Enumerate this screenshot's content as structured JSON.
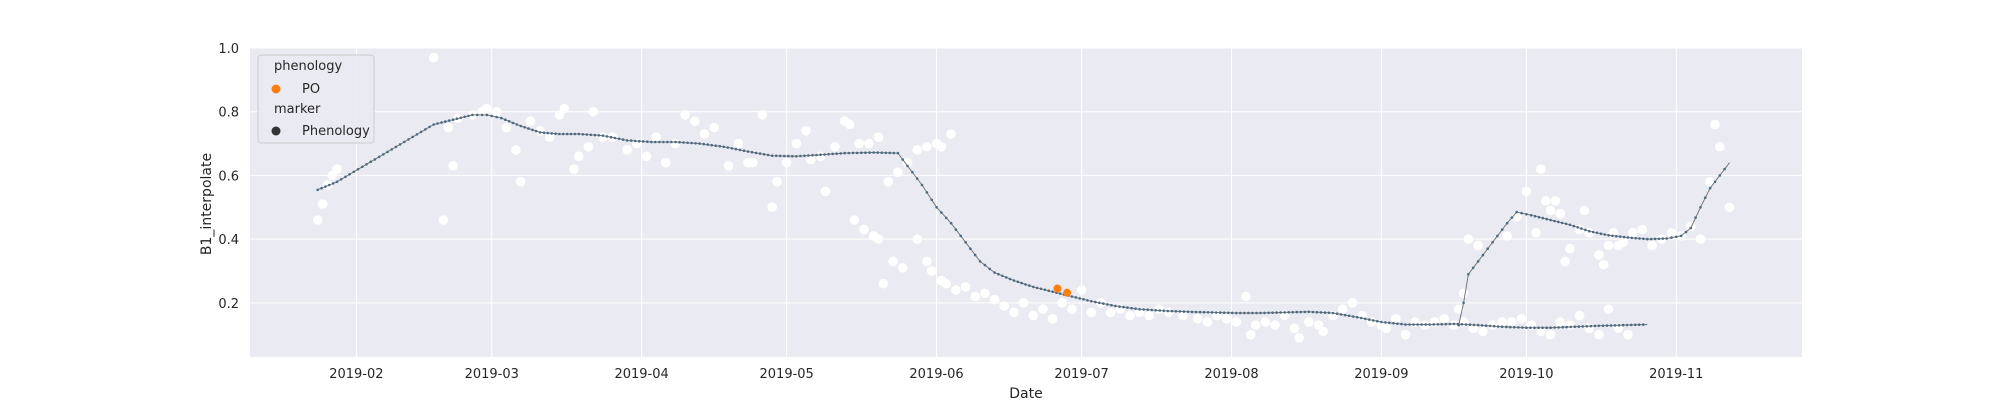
{
  "chart_data": {
    "type": "scatter",
    "title": "",
    "xlabel": "Date",
    "ylabel": "B1_interpolate",
    "x_range": [
      "2019-01-10",
      "2019-11-27"
    ],
    "ylim": [
      0.03,
      1.0
    ],
    "grid": true,
    "style": "seaborn-darkgrid",
    "x_ticks": [
      "2019-02",
      "2019-03",
      "2019-04",
      "2019-05",
      "2019-06",
      "2019-07",
      "2019-08",
      "2019-09",
      "2019-10",
      "2019-11"
    ],
    "y_ticks": [
      "1.0",
      "0.8",
      "0.6",
      "0.4",
      "0.2"
    ],
    "legend": {
      "placement": "upper-left",
      "sections": [
        {
          "title": "phenology",
          "entries": [
            {
              "label": "PO",
              "color": "#ff7f0e"
            }
          ]
        },
        {
          "title": "marker",
          "entries": [
            {
              "label": "Phenology",
              "color": "#333333"
            }
          ]
        }
      ]
    },
    "colors": {
      "observed": "#ffffff",
      "interpolated_line": "#777777",
      "interpolated_points": "#4c6a80",
      "phenology": "#ff7f0e",
      "background": "#eaeaf2"
    },
    "series": [
      {
        "role": "observed",
        "kind": "scatter",
        "color": "#ffffff",
        "points": [
          [
            "2019-01-24",
            0.46
          ],
          [
            "2019-01-25",
            0.51
          ],
          [
            "2019-01-26",
            0.57
          ],
          [
            "2019-01-27",
            0.6
          ],
          [
            "2019-01-28",
            0.62
          ],
          [
            "2019-02-17",
            0.97
          ],
          [
            "2019-02-19",
            0.46
          ],
          [
            "2019-02-20",
            0.75
          ],
          [
            "2019-02-21",
            0.63
          ],
          [
            "2019-02-22",
            0.78
          ],
          [
            "2019-02-25",
            0.79
          ],
          [
            "2019-02-27",
            0.8
          ],
          [
            "2019-02-28",
            0.81
          ],
          [
            "2019-03-02",
            0.8
          ],
          [
            "2019-03-04",
            0.75
          ],
          [
            "2019-03-06",
            0.68
          ],
          [
            "2019-03-07",
            0.58
          ],
          [
            "2019-03-09",
            0.77
          ],
          [
            "2019-03-11",
            0.74
          ],
          [
            "2019-03-13",
            0.72
          ],
          [
            "2019-03-15",
            0.79
          ],
          [
            "2019-03-16",
            0.81
          ],
          [
            "2019-03-18",
            0.62
          ],
          [
            "2019-03-19",
            0.66
          ],
          [
            "2019-03-21",
            0.69
          ],
          [
            "2019-03-22",
            0.8
          ],
          [
            "2019-03-24",
            0.72
          ],
          [
            "2019-03-26",
            0.72
          ],
          [
            "2019-03-29",
            0.68
          ],
          [
            "2019-03-31",
            0.7
          ],
          [
            "2019-04-02",
            0.66
          ],
          [
            "2019-04-04",
            0.72
          ],
          [
            "2019-04-06",
            0.64
          ],
          [
            "2019-04-08",
            0.7
          ],
          [
            "2019-04-10",
            0.79
          ],
          [
            "2019-04-12",
            0.77
          ],
          [
            "2019-04-14",
            0.73
          ],
          [
            "2019-04-16",
            0.75
          ],
          [
            "2019-04-19",
            0.63
          ],
          [
            "2019-04-21",
            0.7
          ],
          [
            "2019-04-23",
            0.64
          ],
          [
            "2019-04-24",
            0.64
          ],
          [
            "2019-04-26",
            0.79
          ],
          [
            "2019-04-28",
            0.5
          ],
          [
            "2019-04-29",
            0.58
          ],
          [
            "2019-05-01",
            0.64
          ],
          [
            "2019-05-03",
            0.7
          ],
          [
            "2019-05-05",
            0.74
          ],
          [
            "2019-05-06",
            0.65
          ],
          [
            "2019-05-08",
            0.66
          ],
          [
            "2019-05-09",
            0.55
          ],
          [
            "2019-05-11",
            0.69
          ],
          [
            "2019-05-13",
            0.77
          ],
          [
            "2019-05-14",
            0.76
          ],
          [
            "2019-05-16",
            0.7
          ],
          [
            "2019-05-18",
            0.7
          ],
          [
            "2019-05-20",
            0.72
          ],
          [
            "2019-05-22",
            0.58
          ],
          [
            "2019-05-24",
            0.61
          ],
          [
            "2019-05-26",
            0.64
          ],
          [
            "2019-05-28",
            0.68
          ],
          [
            "2019-05-30",
            0.69
          ],
          [
            "2019-06-01",
            0.7
          ],
          [
            "2019-06-02",
            0.69
          ],
          [
            "2019-06-04",
            0.73
          ],
          [
            "2019-05-15",
            0.46
          ],
          [
            "2019-05-17",
            0.43
          ],
          [
            "2019-05-19",
            0.41
          ],
          [
            "2019-05-20",
            0.4
          ],
          [
            "2019-05-21",
            0.26
          ],
          [
            "2019-05-23",
            0.33
          ],
          [
            "2019-05-25",
            0.31
          ],
          [
            "2019-05-28",
            0.4
          ],
          [
            "2019-05-30",
            0.33
          ],
          [
            "2019-05-31",
            0.3
          ],
          [
            "2019-06-02",
            0.27
          ],
          [
            "2019-06-03",
            0.26
          ],
          [
            "2019-06-05",
            0.24
          ],
          [
            "2019-06-07",
            0.25
          ],
          [
            "2019-06-09",
            0.22
          ],
          [
            "2019-06-11",
            0.23
          ],
          [
            "2019-06-13",
            0.21
          ],
          [
            "2019-06-15",
            0.19
          ],
          [
            "2019-06-17",
            0.17
          ],
          [
            "2019-06-19",
            0.2
          ],
          [
            "2019-06-21",
            0.16
          ],
          [
            "2019-06-23",
            0.18
          ],
          [
            "2019-06-25",
            0.15
          ],
          [
            "2019-06-27",
            0.2
          ],
          [
            "2019-06-29",
            0.18
          ],
          [
            "2019-07-01",
            0.24
          ],
          [
            "2019-07-03",
            0.17
          ],
          [
            "2019-07-05",
            0.2
          ],
          [
            "2019-07-07",
            0.17
          ],
          [
            "2019-07-09",
            0.18
          ],
          [
            "2019-07-11",
            0.16
          ],
          [
            "2019-07-13",
            0.17
          ],
          [
            "2019-07-15",
            0.16
          ],
          [
            "2019-07-17",
            0.18
          ],
          [
            "2019-07-19",
            0.17
          ],
          [
            "2019-07-22",
            0.16
          ],
          [
            "2019-07-25",
            0.15
          ],
          [
            "2019-07-27",
            0.14
          ],
          [
            "2019-07-29",
            0.16
          ],
          [
            "2019-07-31",
            0.15
          ],
          [
            "2019-08-02",
            0.14
          ],
          [
            "2019-08-04",
            0.22
          ],
          [
            "2019-08-05",
            0.1
          ],
          [
            "2019-08-06",
            0.13
          ],
          [
            "2019-08-08",
            0.14
          ],
          [
            "2019-08-10",
            0.13
          ],
          [
            "2019-08-12",
            0.16
          ],
          [
            "2019-08-14",
            0.12
          ],
          [
            "2019-08-15",
            0.09
          ],
          [
            "2019-08-17",
            0.14
          ],
          [
            "2019-08-19",
            0.13
          ],
          [
            "2019-08-20",
            0.11
          ],
          [
            "2019-08-22",
            0.16
          ],
          [
            "2019-08-24",
            0.18
          ],
          [
            "2019-08-26",
            0.2
          ],
          [
            "2019-08-28",
            0.16
          ],
          [
            "2019-08-30",
            0.14
          ],
          [
            "2019-09-01",
            0.13
          ],
          [
            "2019-09-02",
            0.12
          ],
          [
            "2019-09-04",
            0.15
          ],
          [
            "2019-09-06",
            0.1
          ],
          [
            "2019-09-08",
            0.14
          ],
          [
            "2019-09-10",
            0.13
          ],
          [
            "2019-09-12",
            0.14
          ],
          [
            "2019-09-14",
            0.15
          ],
          [
            "2019-09-16",
            0.13
          ],
          [
            "2019-09-18",
            0.14
          ],
          [
            "2019-09-20",
            0.12
          ],
          [
            "2019-09-22",
            0.11
          ],
          [
            "2019-09-24",
            0.13
          ],
          [
            "2019-09-26",
            0.14
          ],
          [
            "2019-09-28",
            0.14
          ],
          [
            "2019-09-30",
            0.15
          ],
          [
            "2019-10-02",
            0.13
          ],
          [
            "2019-10-04",
            0.11
          ],
          [
            "2019-10-06",
            0.1
          ],
          [
            "2019-10-08",
            0.14
          ],
          [
            "2019-10-10",
            0.13
          ],
          [
            "2019-10-12",
            0.16
          ],
          [
            "2019-10-14",
            0.12
          ],
          [
            "2019-10-16",
            0.1
          ],
          [
            "2019-10-18",
            0.18
          ],
          [
            "2019-10-20",
            0.12
          ],
          [
            "2019-10-22",
            0.1
          ],
          [
            "2019-09-17",
            0.18
          ],
          [
            "2019-09-18",
            0.23
          ],
          [
            "2019-09-19",
            0.4
          ],
          [
            "2019-09-21",
            0.38
          ],
          [
            "2019-09-27",
            0.41
          ],
          [
            "2019-09-29",
            0.47
          ],
          [
            "2019-10-01",
            0.55
          ],
          [
            "2019-10-03",
            0.42
          ],
          [
            "2019-10-04",
            0.62
          ],
          [
            "2019-10-05",
            0.52
          ],
          [
            "2019-10-06",
            0.49
          ],
          [
            "2019-10-07",
            0.52
          ],
          [
            "2019-10-08",
            0.48
          ],
          [
            "2019-10-09",
            0.33
          ],
          [
            "2019-10-10",
            0.37
          ],
          [
            "2019-10-12",
            0.43
          ],
          [
            "2019-10-13",
            0.49
          ],
          [
            "2019-10-14",
            0.42
          ],
          [
            "2019-10-16",
            0.35
          ],
          [
            "2019-10-17",
            0.32
          ],
          [
            "2019-10-18",
            0.38
          ],
          [
            "2019-10-19",
            0.42
          ],
          [
            "2019-10-20",
            0.38
          ],
          [
            "2019-10-21",
            0.39
          ],
          [
            "2019-10-23",
            0.42
          ],
          [
            "2019-10-25",
            0.43
          ],
          [
            "2019-10-27",
            0.38
          ],
          [
            "2019-10-29",
            0.4
          ],
          [
            "2019-10-31",
            0.42
          ],
          [
            "2019-11-02",
            0.41
          ],
          [
            "2019-11-04",
            0.44
          ],
          [
            "2019-11-06",
            0.4
          ],
          [
            "2019-11-08",
            0.58
          ],
          [
            "2019-11-09",
            0.76
          ],
          [
            "2019-11-10",
            0.69
          ],
          [
            "2019-11-12",
            0.5
          ]
        ]
      },
      {
        "role": "interpolated",
        "kind": "line",
        "color": "#777777",
        "points": [
          [
            "2019-01-24",
            0.555
          ],
          [
            "2019-01-28",
            0.58
          ],
          [
            "2019-02-17",
            0.76
          ],
          [
            "2019-02-21",
            0.775
          ],
          [
            "2019-02-25",
            0.79
          ],
          [
            "2019-02-28",
            0.79
          ],
          [
            "2019-03-03",
            0.78
          ],
          [
            "2019-03-07",
            0.755
          ],
          [
            "2019-03-11",
            0.735
          ],
          [
            "2019-03-15",
            0.73
          ],
          [
            "2019-03-19",
            0.73
          ],
          [
            "2019-03-24",
            0.725
          ],
          [
            "2019-03-29",
            0.71
          ],
          [
            "2019-04-03",
            0.705
          ],
          [
            "2019-04-08",
            0.705
          ],
          [
            "2019-04-13",
            0.7
          ],
          [
            "2019-04-18",
            0.69
          ],
          [
            "2019-04-23",
            0.675
          ],
          [
            "2019-04-28",
            0.662
          ],
          [
            "2019-05-03",
            0.66
          ],
          [
            "2019-05-08",
            0.665
          ],
          [
            "2019-05-13",
            0.67
          ],
          [
            "2019-05-19",
            0.672
          ],
          [
            "2019-05-24",
            0.67
          ],
          [
            "2019-05-26",
            0.63
          ],
          [
            "2019-05-29",
            0.57
          ],
          [
            "2019-06-01",
            0.5
          ],
          [
            "2019-06-04",
            0.45
          ],
          [
            "2019-06-07",
            0.39
          ],
          [
            "2019-06-10",
            0.33
          ],
          [
            "2019-06-13",
            0.295
          ],
          [
            "2019-06-17",
            0.27
          ],
          [
            "2019-06-21",
            0.25
          ],
          [
            "2019-06-25",
            0.235
          ],
          [
            "2019-06-29",
            0.22
          ],
          [
            "2019-07-03",
            0.205
          ],
          [
            "2019-07-08",
            0.19
          ],
          [
            "2019-07-13",
            0.18
          ],
          [
            "2019-07-18",
            0.175
          ],
          [
            "2019-07-23",
            0.172
          ],
          [
            "2019-07-28",
            0.17
          ],
          [
            "2019-08-02",
            0.168
          ],
          [
            "2019-08-07",
            0.168
          ],
          [
            "2019-08-12",
            0.17
          ],
          [
            "2019-08-17",
            0.172
          ],
          [
            "2019-08-22",
            0.168
          ],
          [
            "2019-08-27",
            0.155
          ],
          [
            "2019-09-01",
            0.14
          ],
          [
            "2019-09-06",
            0.132
          ],
          [
            "2019-09-11",
            0.132
          ],
          [
            "2019-09-16",
            0.134
          ],
          [
            "2019-09-21",
            0.13
          ],
          [
            "2019-09-26",
            0.125
          ],
          [
            "2019-10-01",
            0.122
          ],
          [
            "2019-10-06",
            0.122
          ],
          [
            "2019-10-11",
            0.125
          ],
          [
            "2019-10-16",
            0.128
          ],
          [
            "2019-10-21",
            0.13
          ],
          [
            "2019-10-26",
            0.132
          ],
          [
            "2019-09-17",
            0.13
          ],
          [
            "2019-09-18",
            0.2
          ],
          [
            "2019-09-19",
            0.29
          ],
          [
            "2019-09-21",
            0.33
          ],
          [
            "2019-09-24",
            0.39
          ],
          [
            "2019-09-27",
            0.45
          ],
          [
            "2019-09-29",
            0.485
          ],
          [
            "2019-10-02",
            0.475
          ],
          [
            "2019-10-06",
            0.46
          ],
          [
            "2019-10-10",
            0.445
          ],
          [
            "2019-10-14",
            0.425
          ],
          [
            "2019-10-18",
            0.412
          ],
          [
            "2019-10-22",
            0.405
          ],
          [
            "2019-10-26",
            0.4
          ],
          [
            "2019-10-30",
            0.402
          ],
          [
            "2019-11-02",
            0.41
          ],
          [
            "2019-11-04",
            0.435
          ],
          [
            "2019-11-06",
            0.5
          ],
          [
            "2019-11-08",
            0.56
          ],
          [
            "2019-11-10",
            0.6
          ],
          [
            "2019-11-12",
            0.64
          ]
        ]
      },
      {
        "role": "phenology",
        "name": "PO",
        "kind": "scatter",
        "color": "#ff7f0e",
        "points": [
          [
            "2019-06-26",
            0.245
          ],
          [
            "2019-06-28",
            0.232
          ]
        ]
      }
    ]
  }
}
